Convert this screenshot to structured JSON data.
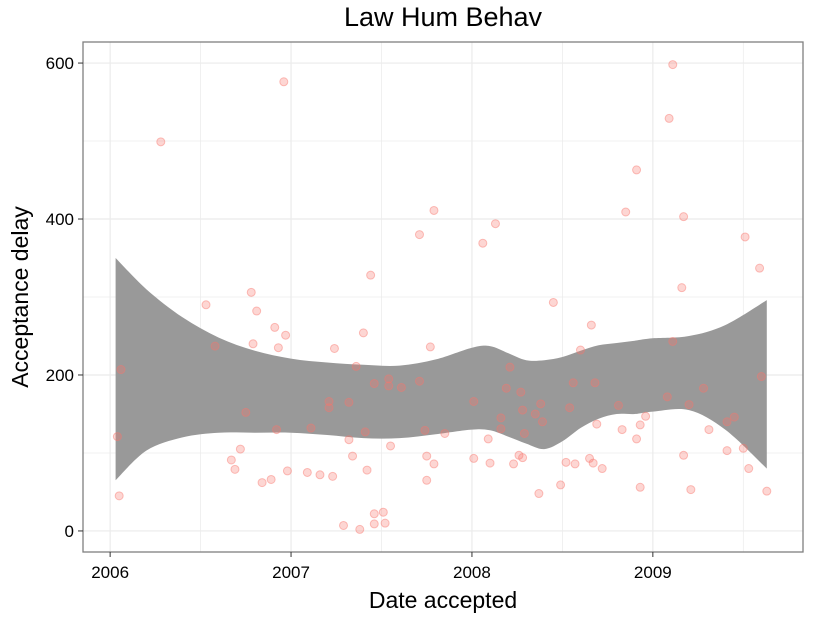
{
  "chart_data": {
    "type": "scatter",
    "title": "Law Hum Behav",
    "xlabel": "Date accepted",
    "ylabel": "Acceptance delay",
    "xlim": [
      2005.85,
      2009.83
    ],
    "ylim": [
      -27,
      627
    ],
    "x_ticks": [
      {
        "value": 2006,
        "label": "2006"
      },
      {
        "value": 2007,
        "label": "2007"
      },
      {
        "value": 2008,
        "label": "2008"
      },
      {
        "value": 2009,
        "label": "2009"
      }
    ],
    "y_ticks": [
      {
        "value": 0,
        "label": "0"
      },
      {
        "value": 200,
        "label": "200"
      },
      {
        "value": 400,
        "label": "400"
      },
      {
        "value": 600,
        "label": "600"
      }
    ],
    "grid": true,
    "colors": {
      "points": "#f8766d",
      "ribbon": "#999999",
      "grid": "#ebebeb",
      "border": "#7f7f7f"
    },
    "points": [
      {
        "x": 2006.04,
        "y": 121
      },
      {
        "x": 2006.05,
        "y": 45
      },
      {
        "x": 2006.06,
        "y": 207
      },
      {
        "x": 2006.28,
        "y": 499
      },
      {
        "x": 2006.53,
        "y": 290
      },
      {
        "x": 2006.58,
        "y": 237
      },
      {
        "x": 2006.67,
        "y": 91
      },
      {
        "x": 2006.69,
        "y": 79
      },
      {
        "x": 2006.72,
        "y": 105
      },
      {
        "x": 2006.75,
        "y": 152
      },
      {
        "x": 2006.78,
        "y": 306
      },
      {
        "x": 2006.79,
        "y": 240
      },
      {
        "x": 2006.81,
        "y": 282
      },
      {
        "x": 2006.84,
        "y": 62
      },
      {
        "x": 2006.89,
        "y": 66
      },
      {
        "x": 2006.91,
        "y": 261
      },
      {
        "x": 2006.92,
        "y": 130
      },
      {
        "x": 2006.93,
        "y": 235
      },
      {
        "x": 2006.96,
        "y": 576
      },
      {
        "x": 2006.97,
        "y": 251
      },
      {
        "x": 2006.98,
        "y": 77
      },
      {
        "x": 2007.09,
        "y": 75
      },
      {
        "x": 2007.11,
        "y": 132
      },
      {
        "x": 2007.16,
        "y": 72
      },
      {
        "x": 2007.21,
        "y": 158
      },
      {
        "x": 2007.21,
        "y": 166
      },
      {
        "x": 2007.23,
        "y": 70
      },
      {
        "x": 2007.24,
        "y": 234
      },
      {
        "x": 2007.29,
        "y": 7
      },
      {
        "x": 2007.32,
        "y": 117
      },
      {
        "x": 2007.32,
        "y": 165
      },
      {
        "x": 2007.34,
        "y": 96
      },
      {
        "x": 2007.36,
        "y": 211
      },
      {
        "x": 2007.38,
        "y": 2
      },
      {
        "x": 2007.4,
        "y": 254
      },
      {
        "x": 2007.41,
        "y": 127
      },
      {
        "x": 2007.42,
        "y": 78
      },
      {
        "x": 2007.44,
        "y": 328
      },
      {
        "x": 2007.46,
        "y": 9
      },
      {
        "x": 2007.46,
        "y": 22
      },
      {
        "x": 2007.46,
        "y": 189
      },
      {
        "x": 2007.51,
        "y": 24
      },
      {
        "x": 2007.52,
        "y": 10
      },
      {
        "x": 2007.54,
        "y": 195
      },
      {
        "x": 2007.54,
        "y": 186
      },
      {
        "x": 2007.55,
        "y": 109
      },
      {
        "x": 2007.61,
        "y": 184
      },
      {
        "x": 2007.71,
        "y": 380
      },
      {
        "x": 2007.71,
        "y": 192
      },
      {
        "x": 2007.74,
        "y": 129
      },
      {
        "x": 2007.75,
        "y": 65
      },
      {
        "x": 2007.75,
        "y": 96
      },
      {
        "x": 2007.77,
        "y": 236
      },
      {
        "x": 2007.79,
        "y": 411
      },
      {
        "x": 2007.79,
        "y": 86
      },
      {
        "x": 2007.85,
        "y": 125
      },
      {
        "x": 2008.01,
        "y": 166
      },
      {
        "x": 2008.01,
        "y": 93
      },
      {
        "x": 2008.06,
        "y": 369
      },
      {
        "x": 2008.09,
        "y": 118
      },
      {
        "x": 2008.1,
        "y": 87
      },
      {
        "x": 2008.13,
        "y": 394
      },
      {
        "x": 2008.16,
        "y": 131
      },
      {
        "x": 2008.16,
        "y": 145
      },
      {
        "x": 2008.19,
        "y": 183
      },
      {
        "x": 2008.21,
        "y": 210
      },
      {
        "x": 2008.23,
        "y": 86
      },
      {
        "x": 2008.26,
        "y": 97
      },
      {
        "x": 2008.27,
        "y": 178
      },
      {
        "x": 2008.28,
        "y": 94
      },
      {
        "x": 2008.28,
        "y": 155
      },
      {
        "x": 2008.29,
        "y": 125
      },
      {
        "x": 2008.35,
        "y": 150
      },
      {
        "x": 2008.37,
        "y": 48
      },
      {
        "x": 2008.38,
        "y": 163
      },
      {
        "x": 2008.39,
        "y": 140
      },
      {
        "x": 2008.45,
        "y": 293
      },
      {
        "x": 2008.49,
        "y": 59
      },
      {
        "x": 2008.52,
        "y": 88
      },
      {
        "x": 2008.54,
        "y": 158
      },
      {
        "x": 2008.56,
        "y": 190
      },
      {
        "x": 2008.57,
        "y": 86
      },
      {
        "x": 2008.6,
        "y": 232
      },
      {
        "x": 2008.65,
        "y": 93
      },
      {
        "x": 2008.66,
        "y": 264
      },
      {
        "x": 2008.67,
        "y": 87
      },
      {
        "x": 2008.68,
        "y": 190
      },
      {
        "x": 2008.69,
        "y": 137
      },
      {
        "x": 2008.72,
        "y": 80
      },
      {
        "x": 2008.81,
        "y": 161
      },
      {
        "x": 2008.83,
        "y": 130
      },
      {
        "x": 2008.85,
        "y": 409
      },
      {
        "x": 2008.91,
        "y": 463
      },
      {
        "x": 2008.91,
        "y": 118
      },
      {
        "x": 2008.93,
        "y": 136
      },
      {
        "x": 2008.93,
        "y": 56
      },
      {
        "x": 2008.96,
        "y": 147
      },
      {
        "x": 2009.08,
        "y": 172
      },
      {
        "x": 2009.09,
        "y": 529
      },
      {
        "x": 2009.11,
        "y": 598
      },
      {
        "x": 2009.11,
        "y": 243
      },
      {
        "x": 2009.16,
        "y": 312
      },
      {
        "x": 2009.17,
        "y": 403
      },
      {
        "x": 2009.17,
        "y": 97
      },
      {
        "x": 2009.2,
        "y": 162
      },
      {
        "x": 2009.21,
        "y": 53
      },
      {
        "x": 2009.28,
        "y": 183
      },
      {
        "x": 2009.31,
        "y": 130
      },
      {
        "x": 2009.41,
        "y": 103
      },
      {
        "x": 2009.41,
        "y": 140
      },
      {
        "x": 2009.45,
        "y": 146
      },
      {
        "x": 2009.5,
        "y": 106
      },
      {
        "x": 2009.51,
        "y": 377
      },
      {
        "x": 2009.53,
        "y": 80
      },
      {
        "x": 2009.59,
        "y": 337
      },
      {
        "x": 2009.6,
        "y": 198
      },
      {
        "x": 2009.63,
        "y": 51
      }
    ],
    "smooth_band": {
      "x": [
        2006.03,
        2006.2,
        2006.4,
        2006.6,
        2006.8,
        2007.0,
        2007.2,
        2007.4,
        2007.6,
        2007.8,
        2008.0,
        2008.1,
        2008.2,
        2008.3,
        2008.4,
        2008.5,
        2008.6,
        2008.7,
        2008.8,
        2008.9,
        2009.0,
        2009.2,
        2009.4,
        2009.63
      ],
      "upper": [
        350,
        310,
        274,
        248,
        231,
        221,
        216,
        213,
        212,
        220,
        235,
        237,
        228,
        219,
        219,
        223,
        231,
        238,
        241,
        244,
        247,
        250,
        264,
        296
      ],
      "lower": [
        65,
        103,
        120,
        126,
        126,
        126,
        123,
        119,
        119,
        124,
        130,
        129,
        121,
        112,
        105,
        115,
        132,
        144,
        150,
        150,
        153,
        155,
        130,
        80
      ]
    }
  }
}
